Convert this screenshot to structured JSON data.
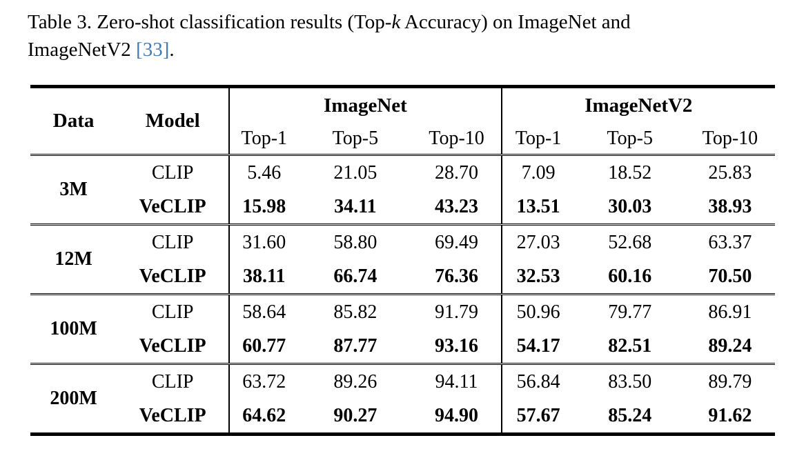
{
  "caption": {
    "part1": "Table 3. Zero-shot classification results (Top-",
    "math_k": "k",
    "part2": " Accuracy) on ImageNet and",
    "line2_text": "ImageNetV2 ",
    "citation": "[33]",
    "period": "."
  },
  "colors": {
    "citation_link": "#3d7dbe",
    "text": "#000000",
    "rules": "#000000"
  },
  "table": {
    "col_headers": {
      "data": "Data",
      "model": "Model"
    },
    "group_headers": [
      "ImageNet",
      "ImageNetV2"
    ],
    "sub_headers": [
      "Top-1",
      "Top-5",
      "Top-10",
      "Top-1",
      "Top-5",
      "Top-10"
    ],
    "groups": [
      {
        "label": "3M",
        "rows": [
          {
            "model": "CLIP",
            "emphasis": false,
            "values": [
              "5.46",
              "21.05",
              "28.70",
              "7.09",
              "18.52",
              "25.83"
            ]
          },
          {
            "model": "VeCLIP",
            "emphasis": true,
            "values": [
              "15.98",
              "34.11",
              "43.23",
              "13.51",
              "30.03",
              "38.93"
            ]
          }
        ]
      },
      {
        "label": "12M",
        "rows": [
          {
            "model": "CLIP",
            "emphasis": false,
            "values": [
              "31.60",
              "58.80",
              "69.49",
              "27.03",
              "52.68",
              "63.37"
            ]
          },
          {
            "model": "VeCLIP",
            "emphasis": true,
            "values": [
              "38.11",
              "66.74",
              "76.36",
              "32.53",
              "60.16",
              "70.50"
            ]
          }
        ]
      },
      {
        "label": "100M",
        "rows": [
          {
            "model": "CLIP",
            "emphasis": false,
            "values": [
              "58.64",
              "85.82",
              "91.79",
              "50.96",
              "79.77",
              "86.91"
            ]
          },
          {
            "model": "VeCLIP",
            "emphasis": true,
            "values": [
              "60.77",
              "87.77",
              "93.16",
              "54.17",
              "82.51",
              "89.24"
            ]
          }
        ]
      },
      {
        "label": "200M",
        "rows": [
          {
            "model": "CLIP",
            "emphasis": false,
            "values": [
              "63.72",
              "89.26",
              "94.11",
              "56.84",
              "83.50",
              "89.79"
            ]
          },
          {
            "model": "VeCLIP",
            "emphasis": true,
            "values": [
              "64.62",
              "90.27",
              "94.90",
              "57.67",
              "85.24",
              "91.62"
            ]
          }
        ]
      }
    ]
  }
}
